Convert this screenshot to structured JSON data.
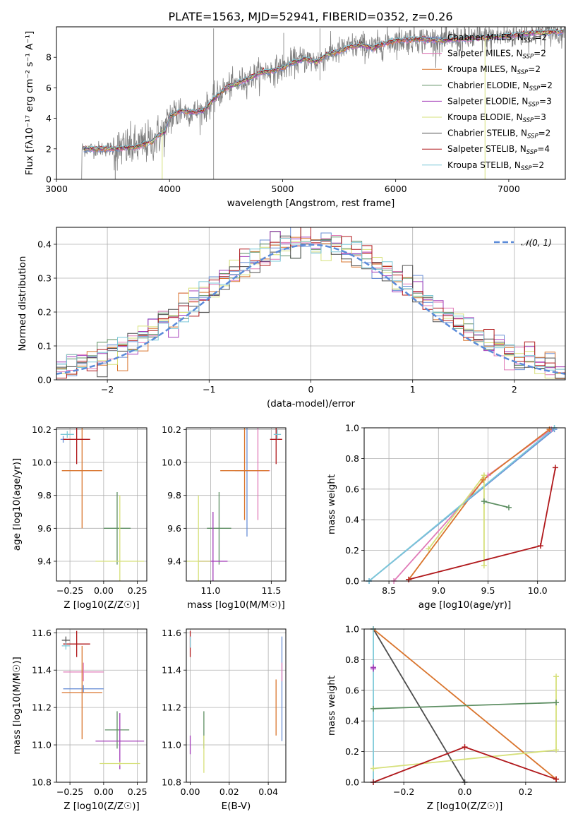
{
  "figure": {
    "title": "PLATE=1563, MJD=52941, FIBERID=0352, z=0.26"
  },
  "models": [
    {
      "name": "Chabrier MILES",
      "nssp": "2",
      "color": "#6a8fd6"
    },
    {
      "name": "Salpeter MILES",
      "nssp": "2",
      "color": "#e07bb8"
    },
    {
      "name": "Kroupa MILES",
      "nssp": "2",
      "color": "#d9742c"
    },
    {
      "name": "Chabrier ELODIE",
      "nssp": "2",
      "color": "#5e8f63"
    },
    {
      "name": "Salpeter ELODIE",
      "nssp": "3",
      "color": "#a23bb8"
    },
    {
      "name": "Kroupa ELODIE",
      "nssp": "3",
      "color": "#d6e07a"
    },
    {
      "name": "Chabrier STELIB",
      "nssp": "2",
      "color": "#4d4d4d"
    },
    {
      "name": "Salpeter STELIB",
      "nssp": "4",
      "color": "#b0181b"
    },
    {
      "name": "Kroupa STELIB",
      "nssp": "2",
      "color": "#7cc8d8"
    }
  ],
  "legend_suffix": "N",
  "legend_sub": "SSP",
  "chart_data": [
    {
      "id": "spectrum",
      "type": "line",
      "xlabel": "wavelength [Angstrom, rest frame]",
      "ylabel": "Flux [fλ10⁻¹⁷ erg cm⁻² s⁻¹ A⁻¹]",
      "xlim": [
        3000,
        7500
      ],
      "ylim": [
        0,
        10
      ],
      "xticks": [
        3000,
        4000,
        5000,
        6000,
        7000
      ],
      "yticks": [
        0,
        2,
        4,
        6,
        8
      ],
      "legend": "upper-right",
      "continuum": [
        [
          3220,
          2.0
        ],
        [
          3500,
          2.0
        ],
        [
          3700,
          2.1
        ],
        [
          3850,
          2.5
        ],
        [
          3900,
          2.9
        ],
        [
          3960,
          3.1
        ],
        [
          4000,
          4.1
        ],
        [
          4100,
          4.5
        ],
        [
          4200,
          4.4
        ],
        [
          4300,
          4.5
        ],
        [
          4400,
          5.3
        ],
        [
          4500,
          6.0
        ],
        [
          4600,
          6.3
        ],
        [
          4700,
          6.6
        ],
        [
          4800,
          7.0
        ],
        [
          4900,
          7.1
        ],
        [
          5000,
          7.3
        ],
        [
          5100,
          7.7
        ],
        [
          5200,
          7.9
        ],
        [
          5300,
          7.7
        ],
        [
          5400,
          8.2
        ],
        [
          5500,
          8.4
        ],
        [
          5600,
          8.7
        ],
        [
          5700,
          8.8
        ],
        [
          5800,
          8.6
        ],
        [
          5900,
          8.9
        ],
        [
          6000,
          9.1
        ],
        [
          6200,
          9.2
        ],
        [
          6400,
          9.1
        ],
        [
          6600,
          9.2
        ],
        [
          6800,
          9.3
        ],
        [
          7000,
          9.4
        ],
        [
          7200,
          9.6
        ],
        [
          7500,
          9.7
        ]
      ]
    },
    {
      "id": "residuals",
      "type": "histogram",
      "xlabel": "(data-model)/error",
      "ylabel": "Normed distribution",
      "xlim": [
        -2.5,
        2.5
      ],
      "ylim": [
        0,
        0.45
      ],
      "xticks": [
        -2,
        -1,
        0,
        1,
        2
      ],
      "yticks": [
        0.0,
        0.1,
        0.2,
        0.3,
        0.4
      ],
      "reference": {
        "label": "𝒩(0, 1)",
        "mean": 0,
        "sigma": 1
      },
      "bin_width": 0.1,
      "legend": "upper-right"
    },
    {
      "id": "age-vs-Z",
      "type": "scatter",
      "xlabel": "Z [log10(Z/Z☉)]",
      "ylabel": "age  [log10(age/yr)]",
      "xlim": [
        -0.35,
        0.32
      ],
      "ylim": [
        9.28,
        10.21
      ],
      "xticks": [
        -0.25,
        0.0,
        0.25
      ],
      "yticks": [
        9.4,
        9.6,
        9.8,
        10.0,
        10.2
      ],
      "points": [
        {
          "model": 0,
          "x": -0.3,
          "y": 10.14,
          "xerr": 0.02,
          "yerr": 0.02
        },
        {
          "model": 2,
          "x": -0.16,
          "y": 9.95,
          "xerr": 0.15,
          "yerr": 0.35
        },
        {
          "model": 3,
          "x": 0.1,
          "y": 9.6,
          "xerr": 0.1,
          "yerr": 0.22
        },
        {
          "model": 5,
          "x": 0.12,
          "y": 9.4,
          "xerr": 0.18,
          "yerr": 0.4
        },
        {
          "model": 7,
          "x": -0.2,
          "y": 10.14,
          "xerr": 0.1,
          "yerr": 0.15
        },
        {
          "model": 8,
          "x": -0.27,
          "y": 10.17,
          "xerr": 0.05,
          "yerr": 0.02
        }
      ]
    },
    {
      "id": "age-vs-mass",
      "type": "scatter",
      "xlabel": "mass [log10(M/M☉)]",
      "ylabel": "",
      "xlim": [
        10.8,
        11.62
      ],
      "ylim": [
        9.28,
        10.21
      ],
      "xticks": [
        11.0,
        11.5
      ],
      "yticks": [
        9.4,
        9.6,
        9.8,
        10.0,
        10.2
      ],
      "points": [
        {
          "model": 0,
          "x": 11.3,
          "y": 9.95,
          "xerr": 0.1,
          "yerr": 0.4
        },
        {
          "model": 1,
          "x": 11.39,
          "y": 9.95,
          "xerr": 0.1,
          "yerr": 0.3
        },
        {
          "model": 2,
          "x": 11.28,
          "y": 9.95,
          "xerr": 0.2,
          "yerr": 0.3
        },
        {
          "model": 3,
          "x": 11.07,
          "y": 9.6,
          "xerr": 0.1,
          "yerr": 0.22
        },
        {
          "model": 4,
          "x": 11.02,
          "y": 9.4,
          "xerr": 0.12,
          "yerr": 0.3
        },
        {
          "model": 5,
          "x": 10.9,
          "y": 9.4,
          "xerr": 0.1,
          "yerr": 0.4
        },
        {
          "model": 7,
          "x": 11.54,
          "y": 10.14,
          "xerr": 0.05,
          "yerr": 0.15
        },
        {
          "model": 8,
          "x": 11.55,
          "y": 10.17,
          "xerr": 0.03,
          "yerr": 0.03
        }
      ]
    },
    {
      "id": "weight-vs-age",
      "type": "line",
      "xlabel": "age  [log10(age/yr)]",
      "ylabel": "mass weight",
      "xlim": [
        8.25,
        10.28
      ],
      "ylim": [
        0,
        1
      ],
      "xticks": [
        8.5,
        9.0,
        9.5,
        10.0
      ],
      "yticks": [
        0.0,
        0.2,
        0.4,
        0.6,
        0.8,
        1.0
      ],
      "series": [
        {
          "model": 1,
          "points": [
            [
              8.55,
              0.0
            ],
            [
              9.5,
              0.69
            ],
            [
              10.14,
              0.99
            ]
          ]
        },
        {
          "model": 2,
          "points": [
            [
              8.7,
              0.01
            ],
            [
              9.45,
              0.66
            ],
            [
              10.12,
              0.99
            ]
          ]
        },
        {
          "model": 0,
          "points": [
            [
              8.3,
              0.0
            ],
            [
              10.17,
              0.99
            ]
          ]
        },
        {
          "model": 8,
          "points": [
            [
              8.3,
              0.0
            ],
            [
              10.17,
              1.0
            ]
          ]
        },
        {
          "model": 5,
          "points": [
            [
              8.9,
              0.21
            ],
            [
              9.46,
              0.69
            ],
            [
              9.46,
              0.1
            ]
          ]
        },
        {
          "model": 3,
          "points": [
            [
              9.46,
              0.52
            ],
            [
              9.71,
              0.48
            ]
          ]
        },
        {
          "model": 7,
          "points": [
            [
              8.7,
              0.01
            ],
            [
              10.03,
              0.23
            ],
            [
              10.18,
              0.74
            ]
          ]
        }
      ]
    },
    {
      "id": "mass-vs-Z",
      "type": "scatter",
      "xlabel": "Z [log10(Z/Z☉)]",
      "ylabel": "mass [log10(M/M☉)]",
      "xlim": [
        -0.35,
        0.32
      ],
      "ylim": [
        10.8,
        11.62
      ],
      "xticks": [
        -0.25,
        0.0,
        0.25
      ],
      "yticks": [
        10.8,
        11.0,
        11.2,
        11.4,
        11.6
      ],
      "points": [
        {
          "model": 0,
          "x": -0.15,
          "y": 11.3,
          "xerr": 0.15,
          "yerr": 0.02
        },
        {
          "model": 1,
          "x": -0.15,
          "y": 11.39,
          "xerr": 0.15,
          "yerr": 0.05
        },
        {
          "model": 2,
          "x": -0.16,
          "y": 11.28,
          "xerr": 0.15,
          "yerr": 0.25
        },
        {
          "model": 3,
          "x": 0.1,
          "y": 11.08,
          "xerr": 0.09,
          "yerr": 0.1
        },
        {
          "model": 4,
          "x": 0.12,
          "y": 11.02,
          "xerr": 0.18,
          "yerr": 0.15
        },
        {
          "model": 5,
          "x": 0.12,
          "y": 10.9,
          "xerr": 0.15,
          "yerr": 0.01
        },
        {
          "model": 6,
          "x": -0.28,
          "y": 11.56,
          "xerr": 0.03,
          "yerr": 0.02
        },
        {
          "model": 7,
          "x": -0.2,
          "y": 11.54,
          "xerr": 0.1,
          "yerr": 0.07
        },
        {
          "model": 8,
          "x": -0.28,
          "y": 11.53,
          "xerr": 0.03,
          "yerr": 0.02
        }
      ]
    },
    {
      "id": "mass-vs-ebv",
      "type": "scatter",
      "xlabel": "E(B-V)",
      "ylabel": "",
      "xlim": [
        -0.002,
        0.049
      ],
      "ylim": [
        10.8,
        11.62
      ],
      "xticks": [
        0.0,
        0.02,
        0.04
      ],
      "yticks": [
        10.8,
        11.0,
        11.2,
        11.4,
        11.6
      ],
      "points": [
        {
          "model": 0,
          "x": 0.047,
          "y": 11.3,
          "xerr": 0.0,
          "yerr": 0.28
        },
        {
          "model": 1,
          "x": 0.047,
          "y": 11.39,
          "xerr": 0.0,
          "yerr": 0.05
        },
        {
          "model": 2,
          "x": 0.044,
          "y": 11.2,
          "xerr": 0.0,
          "yerr": 0.15
        },
        {
          "model": 3,
          "x": 0.007,
          "y": 11.08,
          "xerr": 0.0,
          "yerr": 0.1
        },
        {
          "model": 4,
          "x": 0.0,
          "y": 11.0,
          "xerr": 0.0,
          "yerr": 0.05
        },
        {
          "model": 5,
          "x": 0.007,
          "y": 10.95,
          "xerr": 0.0,
          "yerr": 0.1
        },
        {
          "model": 7,
          "x": 0.0,
          "y": 11.54,
          "xerr": 0.0,
          "yerr": 0.07
        },
        {
          "model": 8,
          "x": 0.0,
          "y": 11.55,
          "xerr": 0.0,
          "yerr": 0.03
        }
      ]
    },
    {
      "id": "weight-vs-Z",
      "type": "line",
      "xlabel": "Z [log10(Z/Z☉)]",
      "ylabel": "mass weight",
      "xlim": [
        -0.33,
        0.33
      ],
      "ylim": [
        0,
        1
      ],
      "xticks": [
        -0.2,
        0.0,
        0.2
      ],
      "yticks": [
        0.0,
        0.2,
        0.4,
        0.6,
        0.8,
        1.0
      ],
      "series": [
        {
          "model": 6,
          "points": [
            [
              -0.3,
              1.0
            ],
            [
              0.0,
              0.0
            ]
          ]
        },
        {
          "model": 2,
          "points": [
            [
              -0.3,
              1.0
            ],
            [
              0.3,
              0.02
            ]
          ]
        },
        {
          "model": 3,
          "points": [
            [
              -0.3,
              0.48
            ],
            [
              0.3,
              0.52
            ]
          ]
        },
        {
          "model": 5,
          "points": [
            [
              -0.3,
              0.09
            ],
            [
              0.3,
              0.21
            ],
            [
              0.3,
              0.69
            ]
          ]
        },
        {
          "model": 4,
          "points": [
            [
              -0.3,
              0.74
            ],
            [
              -0.3,
              0.75
            ]
          ]
        },
        {
          "model": 8,
          "points": [
            [
              -0.3,
              1.0
            ],
            [
              -0.3,
              0.0
            ]
          ]
        },
        {
          "model": 7,
          "points": [
            [
              -0.3,
              0.0
            ],
            [
              0.0,
              0.23
            ],
            [
              0.3,
              0.02
            ]
          ]
        }
      ]
    }
  ]
}
